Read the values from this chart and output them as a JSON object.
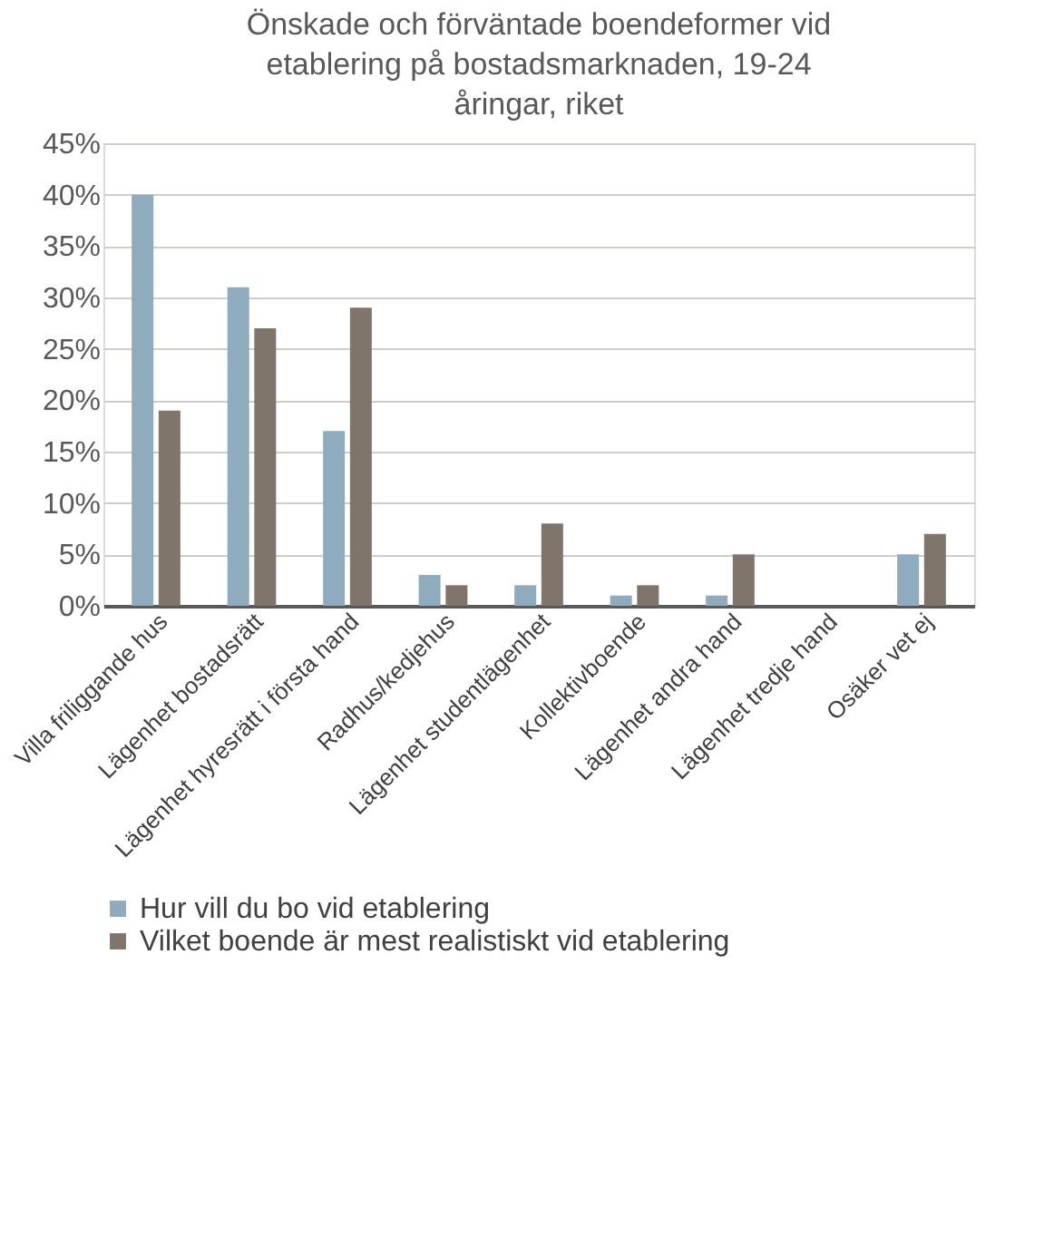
{
  "chart_data": {
    "type": "bar",
    "title": "Önskade och förväntade boendeformer vid etablering på bostadsmarknaden, 19-24 åringar, riket",
    "categories": [
      "Villa friliggande hus",
      "Lägenhet bostadsrätt",
      "Lägenhet hyresrätt i första hand",
      "Radhus/kedjehus",
      "Lägenhet studentlägenhet",
      "Kollektivboende",
      "Lägenhet andra hand",
      "Lägenhet tredje hand",
      "Osäker vet ej"
    ],
    "series": [
      {
        "name": "Hur vill du bo vid etablering",
        "color": "#8eacbd",
        "values": [
          40,
          31,
          17,
          3,
          2,
          1,
          1,
          0,
          5
        ]
      },
      {
        "name": "Vilket boende är mest realistiskt vid etablering",
        "color": "#7f756b",
        "values": [
          19,
          27,
          29,
          2,
          8,
          2,
          5,
          0,
          7
        ]
      }
    ],
    "ylim": [
      0,
      45
    ],
    "yticks": [
      {
        "value": 0,
        "label": "0%"
      },
      {
        "value": 5,
        "label": "5%"
      },
      {
        "value": 10,
        "label": "10%"
      },
      {
        "value": 15,
        "label": "15%"
      },
      {
        "value": 20,
        "label": "20%"
      },
      {
        "value": 25,
        "label": "25%"
      },
      {
        "value": 30,
        "label": "30%"
      },
      {
        "value": 35,
        "label": "35%"
      },
      {
        "value": 40,
        "label": "40%"
      },
      {
        "value": 45,
        "label": "45%"
      }
    ],
    "grid": "y",
    "legend": "bottom"
  }
}
